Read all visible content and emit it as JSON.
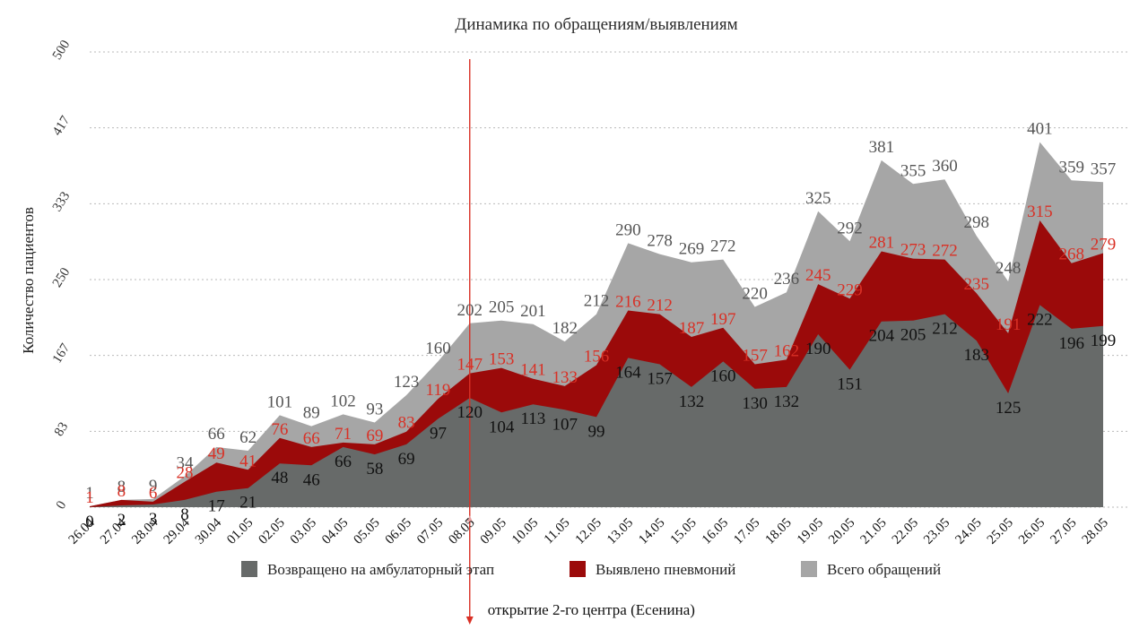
{
  "chart_data": {
    "type": "area",
    "title": "Динамика по обращениям/выявлениям",
    "ylabel": "Количество пациентов",
    "xlabel": "",
    "ylim": [
      0,
      500
    ],
    "yticks": [
      "0",
      "83",
      "167",
      "250",
      "333",
      "417",
      "500"
    ],
    "grid": true,
    "legend_position": "bottom",
    "categories": [
      "26.04",
      "27.04",
      "28.04",
      "29.04",
      "30.04",
      "01.05",
      "02.05",
      "03.05",
      "04.05",
      "05.05",
      "06.05",
      "07.05",
      "08.05",
      "09.05",
      "10.05",
      "11.05",
      "12.05",
      "13.05",
      "14.05",
      "15.05",
      "16.05",
      "17.05",
      "18.05",
      "19.05",
      "20.05",
      "21.05",
      "22.05",
      "23.05",
      "24.05",
      "25.05",
      "26.05",
      "27.05",
      "28.05"
    ],
    "series": [
      {
        "name": "Всего обращений",
        "color": "#a6a6a6",
        "label_color": "#555555",
        "values": [
          1,
          8,
          9,
          34,
          66,
          62,
          101,
          89,
          102,
          93,
          123,
          160,
          202,
          205,
          201,
          182,
          212,
          290,
          278,
          269,
          272,
          220,
          236,
          325,
          292,
          381,
          355,
          360,
          298,
          248,
          401,
          359,
          357
        ]
      },
      {
        "name": "Выявлено пневмоний",
        "color": "#9b0a0a",
        "label_color": "#d93025",
        "values": [
          1,
          8,
          6,
          28,
          49,
          41,
          76,
          66,
          71,
          69,
          83,
          119,
          147,
          153,
          141,
          133,
          156,
          216,
          212,
          187,
          197,
          157,
          162,
          245,
          229,
          281,
          273,
          272,
          235,
          191,
          315,
          268,
          279
        ]
      },
      {
        "name": "Возвращено на амбулаторный этап",
        "color": "#676a69",
        "label_color": "#111111",
        "values": [
          0,
          2,
          3,
          8,
          17,
          21,
          48,
          46,
          66,
          58,
          69,
          97,
          120,
          104,
          113,
          107,
          99,
          164,
          157,
          132,
          160,
          130,
          132,
          190,
          151,
          204,
          205,
          212,
          183,
          125,
          222,
          196,
          199
        ]
      }
    ],
    "annotations": [
      {
        "x": "08.05",
        "text": "открытие 2-го центра (Есенина)",
        "color": "#d93025"
      }
    ]
  }
}
